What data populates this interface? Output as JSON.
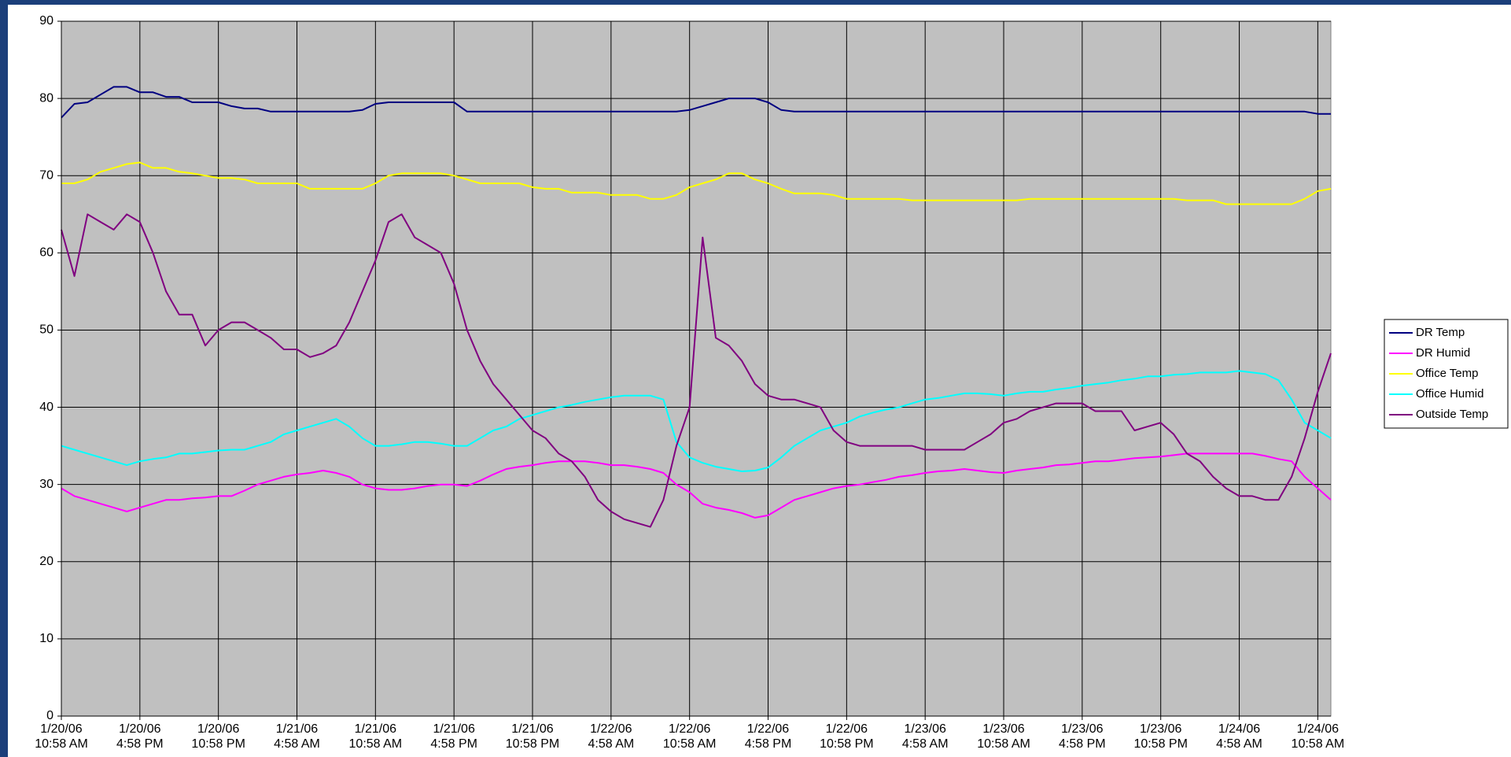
{
  "chart_data": {
    "type": "line",
    "categories": [
      "1/20/06\n10:58 AM",
      null,
      null,
      null,
      null,
      null,
      "1/20/06\n4:58 PM",
      null,
      null,
      null,
      null,
      null,
      "1/20/06\n10:58 PM",
      null,
      null,
      null,
      null,
      null,
      "1/21/06\n4:58 AM",
      null,
      null,
      null,
      null,
      null,
      "1/21/06\n10:58 AM",
      null,
      null,
      null,
      null,
      null,
      "1/21/06\n4:58 PM",
      null,
      null,
      null,
      null,
      null,
      "1/21/06\n10:58 PM",
      null,
      null,
      null,
      null,
      null,
      "1/22/06\n4:58 AM",
      null,
      null,
      null,
      null,
      null,
      "1/22/06\n10:58 AM",
      null,
      null,
      null,
      null,
      null,
      "1/22/06\n4:58 PM",
      null,
      null,
      null,
      null,
      null,
      "1/22/06\n10:58 PM",
      null,
      null,
      null,
      null,
      null,
      "1/23/06\n4:58 AM",
      null,
      null,
      null,
      null,
      null,
      "1/23/06\n10:58 AM",
      null,
      null,
      null,
      null,
      null,
      "1/23/06\n4:58 PM",
      null,
      null,
      null,
      null,
      null,
      "1/23/06\n10:58 PM",
      null,
      null,
      null,
      null,
      null,
      "1/24/06\n4:58 AM",
      null,
      null,
      null,
      null,
      null,
      "1/24/06\n10:58 AM",
      null
    ],
    "series": [
      {
        "name": "DR Temp",
        "color": "#000080",
        "values": [
          77.5,
          79.3,
          79.5,
          80.5,
          81.5,
          81.5,
          80.8,
          80.8,
          80.2,
          80.2,
          79.5,
          79.5,
          79.5,
          79,
          78.7,
          78.7,
          78.3,
          78.3,
          78.3,
          78.3,
          78.3,
          78.3,
          78.3,
          78.5,
          79.3,
          79.5,
          79.5,
          79.5,
          79.5,
          79.5,
          79.5,
          78.3,
          78.3,
          78.3,
          78.3,
          78.3,
          78.3,
          78.3,
          78.3,
          78.3,
          78.3,
          78.3,
          78.3,
          78.3,
          78.3,
          78.3,
          78.3,
          78.3,
          78.5,
          79,
          79.5,
          80,
          80,
          80,
          79.5,
          78.5,
          78.3,
          78.3,
          78.3,
          78.3,
          78.3,
          78.3,
          78.3,
          78.3,
          78.3,
          78.3,
          78.3,
          78.3,
          78.3,
          78.3,
          78.3,
          78.3,
          78.3,
          78.3,
          78.3,
          78.3,
          78.3,
          78.3,
          78.3,
          78.3,
          78.3,
          78.3,
          78.3,
          78.3,
          78.3,
          78.3,
          78.3,
          78.3,
          78.3,
          78.3,
          78.3,
          78.3,
          78.3,
          78.3,
          78.3,
          78.3,
          78,
          78
        ]
      },
      {
        "name": "DR Humid",
        "color": "#ff00ff",
        "values": [
          29.5,
          28.5,
          28,
          27.5,
          27,
          26.5,
          27,
          27.5,
          28,
          28,
          28.2,
          28.3,
          28.5,
          28.5,
          29.2,
          30,
          30.5,
          31,
          31.3,
          31.5,
          31.8,
          31.5,
          31,
          30,
          29.5,
          29.3,
          29.3,
          29.5,
          29.8,
          30,
          30,
          29.8,
          30.5,
          31.3,
          32,
          32.3,
          32.5,
          32.8,
          33,
          33,
          33,
          32.8,
          32.5,
          32.5,
          32.3,
          32,
          31.5,
          30,
          29,
          27.5,
          27,
          26.7,
          26.3,
          25.7,
          26,
          27,
          28,
          28.5,
          29,
          29.5,
          29.8,
          30,
          30.3,
          30.6,
          31,
          31.2,
          31.5,
          31.7,
          31.8,
          32,
          31.8,
          31.6,
          31.5,
          31.8,
          32,
          32.2,
          32.5,
          32.6,
          32.8,
          33,
          33,
          33.2,
          33.4,
          33.5,
          33.6,
          33.8,
          34,
          34,
          34,
          34,
          34,
          34,
          33.7,
          33.3,
          33,
          31,
          29.5,
          28
        ]
      },
      {
        "name": "Office Temp",
        "color": "#ffff00",
        "values": [
          69,
          69,
          69.5,
          70.5,
          71,
          71.5,
          71.7,
          71,
          71,
          70.5,
          70.3,
          70,
          69.7,
          69.7,
          69.5,
          69,
          69,
          69,
          69,
          68.3,
          68.3,
          68.3,
          68.3,
          68.3,
          69,
          70,
          70.3,
          70.3,
          70.3,
          70.3,
          70,
          69.5,
          69,
          69,
          69,
          69,
          68.5,
          68.3,
          68.3,
          67.8,
          67.8,
          67.8,
          67.5,
          67.5,
          67.5,
          67,
          67,
          67.5,
          68.5,
          69,
          69.5,
          70.3,
          70.3,
          69.5,
          69,
          68.3,
          67.7,
          67.7,
          67.7,
          67.5,
          67,
          67,
          67,
          67,
          67,
          66.8,
          66.8,
          66.8,
          66.8,
          66.8,
          66.8,
          66.8,
          66.8,
          66.8,
          67,
          67,
          67,
          67,
          67,
          67,
          67,
          67,
          67,
          67,
          67,
          67,
          66.8,
          66.8,
          66.8,
          66.3,
          66.3,
          66.3,
          66.3,
          66.3,
          66.3,
          67,
          68,
          68.3
        ]
      },
      {
        "name": "Office Humid",
        "color": "#00ffff",
        "values": [
          35,
          34.5,
          34,
          33.5,
          33,
          32.5,
          33,
          33.3,
          33.5,
          34,
          34,
          34.2,
          34.4,
          34.5,
          34.5,
          35,
          35.5,
          36.5,
          37,
          37.5,
          38,
          38.5,
          37.5,
          36,
          35,
          35,
          35.2,
          35.5,
          35.5,
          35.3,
          35,
          35,
          36,
          37,
          37.5,
          38.5,
          39,
          39.5,
          40,
          40.3,
          40.7,
          41,
          41.3,
          41.5,
          41.5,
          41.5,
          41,
          35.5,
          33.5,
          32.8,
          32.3,
          32,
          31.7,
          31.8,
          32.2,
          33.5,
          35,
          36,
          37,
          37.5,
          38,
          38.8,
          39.3,
          39.7,
          40,
          40.5,
          41,
          41.2,
          41.5,
          41.8,
          41.8,
          41.7,
          41.5,
          41.8,
          42,
          42,
          42.3,
          42.5,
          42.8,
          43,
          43.2,
          43.5,
          43.7,
          44,
          44,
          44.2,
          44.3,
          44.5,
          44.5,
          44.5,
          44.7,
          44.5,
          44.3,
          43.5,
          41,
          38,
          37,
          36
        ]
      },
      {
        "name": "Outside Temp",
        "color": "#800080",
        "values": [
          63,
          57,
          65,
          64,
          63,
          65,
          64,
          60,
          55,
          52,
          52,
          48,
          50,
          51,
          51,
          50,
          49,
          47.5,
          47.5,
          46.5,
          47,
          48,
          51,
          55,
          59,
          64,
          65,
          62,
          61,
          60,
          56,
          50,
          46,
          43,
          41,
          39,
          37,
          36,
          34,
          33,
          31,
          28,
          26.5,
          25.5,
          25,
          24.5,
          28,
          35,
          40,
          62,
          49,
          48,
          46,
          43,
          41.5,
          41,
          41,
          40.5,
          40,
          37,
          35.5,
          35,
          35,
          35,
          35,
          35,
          34.5,
          34.5,
          34.5,
          34.5,
          35.5,
          36.5,
          38,
          38.5,
          39.5,
          40,
          40.5,
          40.5,
          40.5,
          39.5,
          39.5,
          39.5,
          37,
          37.5,
          38,
          36.5,
          34,
          33,
          31,
          29.5,
          28.5,
          28.5,
          28,
          28,
          31,
          36,
          42,
          47
        ]
      }
    ],
    "ylim": [
      0,
      90
    ],
    "yticks": [
      0,
      10,
      20,
      30,
      40,
      50,
      60,
      70,
      80,
      90
    ],
    "grid": true,
    "legend": "right",
    "plot_background": "#c0c0c0"
  }
}
